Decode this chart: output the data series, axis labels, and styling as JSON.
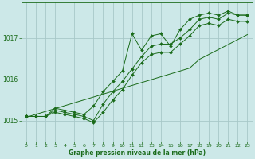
{
  "title": "Graphe pression niveau de la mer (hPa)",
  "bg_color": "#cce8e8",
  "grid_color": "#a8c8c8",
  "line_color": "#1a6b1a",
  "marker_color": "#1a6b1a",
  "xlim": [
    -0.5,
    23.5
  ],
  "ylim": [
    1014.5,
    1017.85
  ],
  "yticks": [
    1015,
    1016,
    1017
  ],
  "xticks": [
    0,
    1,
    2,
    3,
    4,
    5,
    6,
    7,
    8,
    9,
    10,
    11,
    12,
    13,
    14,
    15,
    16,
    17,
    18,
    19,
    20,
    21,
    22,
    23
  ],
  "series1": [
    1015.1,
    1015.1,
    1015.1,
    1015.3,
    1015.25,
    1015.2,
    1015.15,
    1015.35,
    1015.7,
    1015.95,
    1016.2,
    1017.1,
    1016.7,
    1017.05,
    1017.1,
    1016.8,
    1017.2,
    1017.45,
    1017.55,
    1017.6,
    1017.55,
    1017.65,
    1017.55,
    1017.55
  ],
  "series2": [
    1015.1,
    1015.1,
    1015.1,
    1015.25,
    1015.2,
    1015.15,
    1015.1,
    1015.0,
    1015.4,
    1015.7,
    1015.95,
    1016.25,
    1016.55,
    1016.8,
    1016.85,
    1016.85,
    1017.0,
    1017.2,
    1017.45,
    1017.5,
    1017.45,
    1017.6,
    1017.55,
    1017.55
  ],
  "series3": [
    1015.1,
    1015.1,
    1015.1,
    1015.2,
    1015.15,
    1015.1,
    1015.05,
    1014.95,
    1015.2,
    1015.5,
    1015.75,
    1016.1,
    1016.4,
    1016.6,
    1016.65,
    1016.65,
    1016.85,
    1017.05,
    1017.3,
    1017.35,
    1017.3,
    1017.45,
    1017.4,
    1017.4
  ],
  "series_linear": [
    1015.08,
    1015.15,
    1015.22,
    1015.29,
    1015.36,
    1015.43,
    1015.5,
    1015.57,
    1015.64,
    1015.71,
    1015.78,
    1015.85,
    1015.92,
    1015.99,
    1016.06,
    1016.13,
    1016.2,
    1016.27,
    1016.48,
    1016.6,
    1016.72,
    1016.84,
    1016.96,
    1017.08
  ]
}
